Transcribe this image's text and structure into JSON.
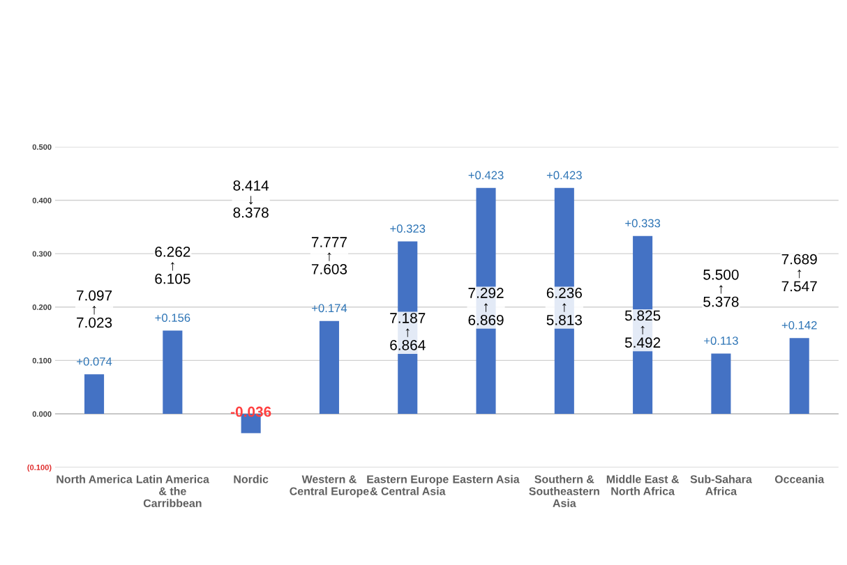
{
  "chart_data": {
    "type": "bar",
    "categories": [
      "North America",
      "Latin America\n& the\nCarribbean",
      "Nordic",
      "Western &\nCentral Europe",
      "Eastern Europe\n& Central Asia",
      "Eastern Asia",
      "Southern &\nSoutheastern\nAsia",
      "Middle East &\nNorth Africa",
      "Sub-Sahara\nAfrica",
      "Occeania"
    ],
    "values": [
      0.074,
      0.156,
      -0.036,
      0.174,
      0.323,
      0.423,
      0.423,
      0.333,
      0.113,
      0.142
    ],
    "value_labels": [
      "+0.074",
      "+0.156",
      "-0.036",
      "+0.174",
      "+0.323",
      "+0.423",
      "+0.423",
      "+0.333",
      "+0.113",
      "+0.142"
    ],
    "color": "#4472c4",
    "ylim": [
      -0.1,
      0.5
    ],
    "yticks": [
      {
        "value": -0.1,
        "label": "(0.100)"
      },
      {
        "value": 0.0,
        "label": "0.000"
      },
      {
        "value": 0.1,
        "label": "0.100"
      },
      {
        "value": 0.2,
        "label": "0.200"
      },
      {
        "value": 0.3,
        "label": "0.300"
      },
      {
        "value": 0.4,
        "label": "0.400"
      },
      {
        "value": 0.5,
        "label": "0.500"
      }
    ],
    "grid": "y",
    "annotations": [
      "7.097\n↑\n7.023",
      "6.262\n↑\n6.105",
      "8.414\n↓\n8.378",
      "7.777\n↑\n7.603",
      "7.187\n↑\n6.864",
      "7.292\n↑\n6.869",
      "6.236\n↑\n5.813",
      "5.825\n↑\n5.492",
      "5.500\n↑\n5.378",
      "7.689\n↑\n7.547"
    ]
  }
}
